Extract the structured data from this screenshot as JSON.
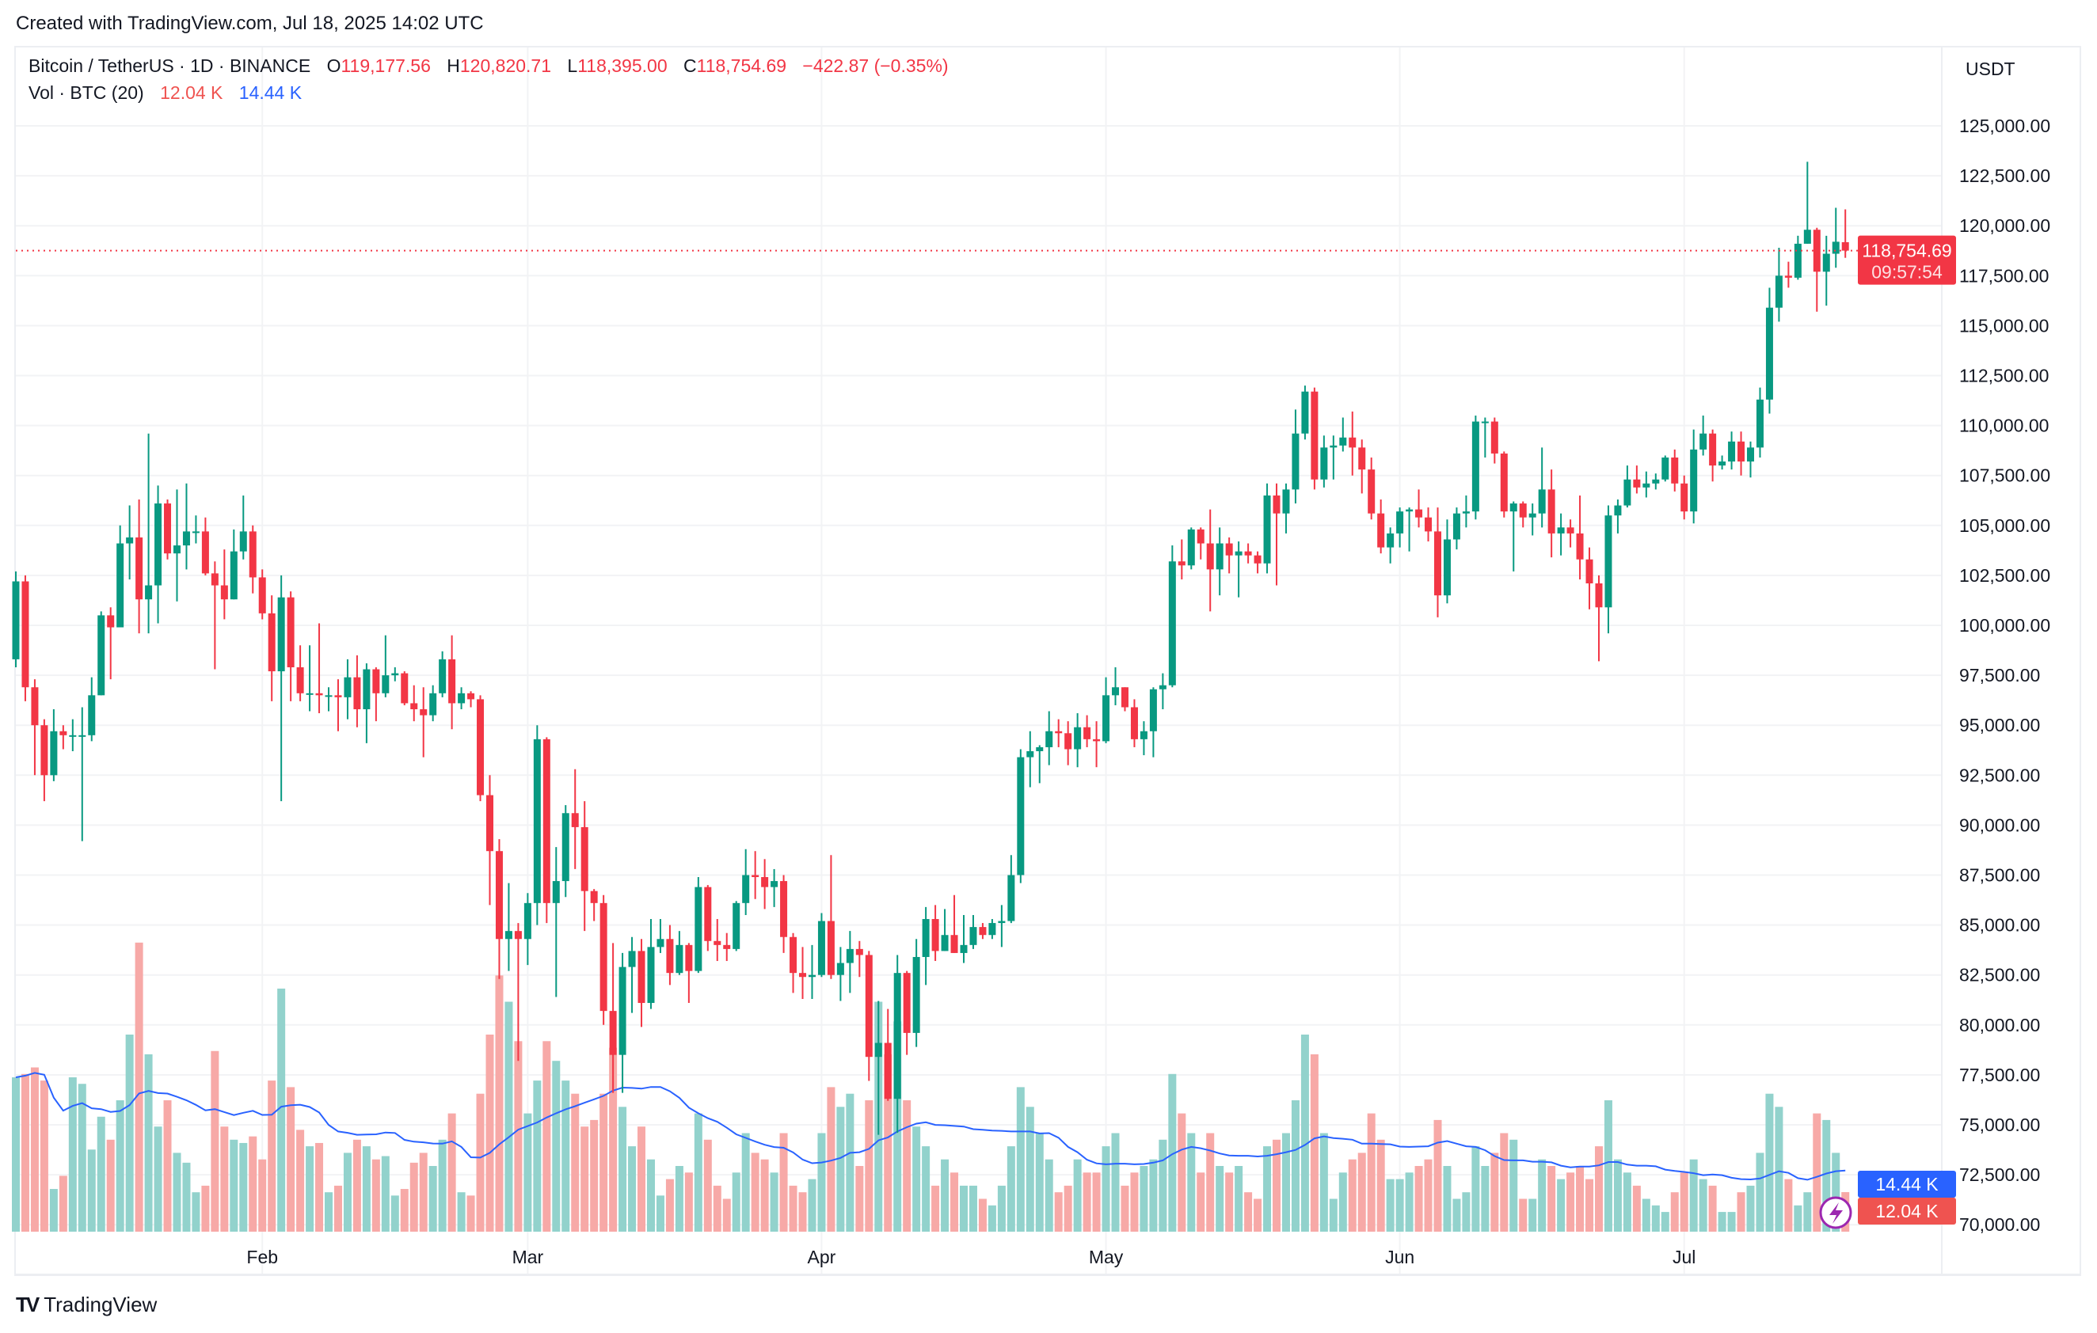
{
  "header": {
    "created": "Created with TradingView.com, Jul 18, 2025 14:02 UTC"
  },
  "legend": {
    "symbol": "Bitcoin / TetherUS · 1D · BINANCE",
    "o_label": "O",
    "o": "119,177.56",
    "h_label": "H",
    "h": "120,820.71",
    "l_label": "L",
    "l": "118,395.00",
    "c_label": "C",
    "c": "118,754.69",
    "change": "−422.87 (−0.35%)",
    "vol_label": "Vol · BTC (20)",
    "vol": "12.04 K",
    "vol_ma": "14.44 K"
  },
  "axis": {
    "currency": "USDT"
  },
  "price_label": {
    "price": "118,754.69",
    "countdown": "09:57:54"
  },
  "vol_labels": {
    "ma": "14.44 K",
    "vol": "12.04 K"
  },
  "footer": {
    "brand": "TradingView"
  },
  "colors": {
    "up": "#089981",
    "down": "#f23645",
    "vol_up": "#92d2cc",
    "vol_down": "#f7a9a7",
    "ma": "#2962ff",
    "alert": "#9c27b0"
  },
  "chart_data": {
    "type": "candlestick",
    "period": "1D",
    "first_date": "2025-01-06",
    "last_date": "2025-07-18",
    "ylim": [
      68000,
      128000
    ],
    "y_ticks": [
      70000,
      72500,
      75000,
      77500,
      80000,
      82500,
      85000,
      87500,
      90000,
      92500,
      95000,
      97500,
      100000,
      102500,
      105000,
      107500,
      110000,
      112500,
      115000,
      117500,
      120000,
      122500,
      125000
    ],
    "y_tick_labels": [
      "70,000.00",
      "72,500.00",
      "75,000.00",
      "77,500.00",
      "80,000.00",
      "82,500.00",
      "85,000.00",
      "87,500.00",
      "90,000.00",
      "92,500.00",
      "95,000.00",
      "97,500.00",
      "100,000.00",
      "102,500.00",
      "105,000.00",
      "107,500.00",
      "110,000.00",
      "112,500.00",
      "115,000.00",
      "117,500.00",
      "120,000.00",
      "122,500.00",
      "125,000.00"
    ],
    "x_ticks": [
      {
        "label": "Feb",
        "date": "2025-02-01"
      },
      {
        "label": "Mar",
        "date": "2025-03-01"
      },
      {
        "label": "Apr",
        "date": "2025-04-01"
      },
      {
        "label": "May",
        "date": "2025-05-01"
      },
      {
        "label": "Jun",
        "date": "2025-06-01"
      },
      {
        "label": "Jul",
        "date": "2025-07-01"
      }
    ],
    "last_price": 118754.69,
    "ohlc": [
      [
        98300,
        102700,
        97900,
        102200
      ],
      [
        102200,
        102500,
        96200,
        96900
      ],
      [
        96900,
        97300,
        92500,
        95000
      ],
      [
        95000,
        95300,
        91200,
        92500
      ],
      [
        92500,
        95800,
        92200,
        94700
      ],
      [
        94700,
        95000,
        93800,
        94500
      ],
      [
        94500,
        95300,
        93700,
        94500
      ],
      [
        94500,
        95900,
        89200,
        94500
      ],
      [
        94500,
        97400,
        94200,
        96500
      ],
      [
        96500,
        100700,
        96500,
        100500
      ],
      [
        100500,
        100900,
        97300,
        99900
      ],
      [
        99900,
        105000,
        99900,
        104100
      ],
      [
        104100,
        106000,
        102300,
        104400
      ],
      [
        104400,
        106300,
        99600,
        101300
      ],
      [
        101300,
        109600,
        99600,
        102000
      ],
      [
        102000,
        107000,
        100100,
        106100
      ],
      [
        106100,
        106300,
        103300,
        103600
      ],
      [
        103600,
        106800,
        101200,
        104000
      ],
      [
        104000,
        107100,
        102800,
        104700
      ],
      [
        104700,
        105500,
        104100,
        104700
      ],
      [
        104700,
        105400,
        102500,
        102600
      ],
      [
        102600,
        103200,
        97800,
        102000
      ],
      [
        102000,
        103800,
        100300,
        101300
      ],
      [
        101300,
        104800,
        101300,
        103700
      ],
      [
        103700,
        106500,
        103300,
        104700
      ],
      [
        104700,
        105000,
        101600,
        102400
      ],
      [
        102400,
        102800,
        100300,
        100600
      ],
      [
        100600,
        101500,
        96200,
        97700
      ],
      [
        97700,
        102500,
        91200,
        101400
      ],
      [
        101400,
        101700,
        96200,
        97900
      ],
      [
        97900,
        99000,
        96200,
        96600
      ],
      [
        96600,
        99000,
        95700,
        96600
      ],
      [
        96600,
        100100,
        95600,
        96500
      ],
      [
        96500,
        96900,
        95700,
        96500
      ],
      [
        96500,
        97300,
        94700,
        96400
      ],
      [
        96400,
        98300,
        95300,
        97400
      ],
      [
        97400,
        98500,
        94900,
        95800
      ],
      [
        95800,
        98100,
        94100,
        97800
      ],
      [
        97800,
        97900,
        95200,
        96600
      ],
      [
        96600,
        99500,
        96400,
        97500
      ],
      [
        97500,
        97900,
        97200,
        97600
      ],
      [
        97600,
        97700,
        96000,
        96100
      ],
      [
        96100,
        97000,
        95200,
        95800
      ],
      [
        95800,
        96900,
        93400,
        95500
      ],
      [
        95500,
        97000,
        95200,
        96600
      ],
      [
        96600,
        98700,
        96400,
        98300
      ],
      [
        98300,
        99500,
        94800,
        96100
      ],
      [
        96100,
        96900,
        95800,
        96600
      ],
      [
        96600,
        96700,
        95900,
        96300
      ],
      [
        96300,
        96500,
        91200,
        91500
      ],
      [
        91500,
        92500,
        86000,
        88700
      ],
      [
        88700,
        89300,
        82300,
        84300
      ],
      [
        84300,
        87100,
        82700,
        84700
      ],
      [
        84700,
        85100,
        78200,
        84300
      ],
      [
        84300,
        86600,
        83000,
        86100
      ],
      [
        86100,
        95000,
        85000,
        94300
      ],
      [
        94300,
        94400,
        85100,
        86100
      ],
      [
        86100,
        88900,
        81400,
        87200
      ],
      [
        87200,
        91000,
        86400,
        90600
      ],
      [
        90600,
        92800,
        87800,
        89900
      ],
      [
        89900,
        91200,
        84700,
        86700
      ],
      [
        86700,
        86800,
        85200,
        86100
      ],
      [
        86100,
        86500,
        80000,
        80700
      ],
      [
        80700,
        84100,
        76600,
        78500
      ],
      [
        78500,
        83600,
        76600,
        82900
      ],
      [
        82900,
        84400,
        80600,
        83700
      ],
      [
        83700,
        84300,
        79900,
        81100
      ],
      [
        81100,
        85300,
        80800,
        83900
      ],
      [
        83900,
        85300,
        83600,
        84300
      ],
      [
        84300,
        85000,
        82000,
        82600
      ],
      [
        82600,
        84700,
        82500,
        84000
      ],
      [
        84000,
        84100,
        81100,
        82700
      ],
      [
        82700,
        87400,
        82600,
        86900
      ],
      [
        86900,
        87000,
        83700,
        84200
      ],
      [
        84200,
        85300,
        83200,
        84000
      ],
      [
        84000,
        84600,
        83200,
        83800
      ],
      [
        83800,
        86200,
        83700,
        86100
      ],
      [
        86100,
        88800,
        85500,
        87500
      ],
      [
        87500,
        88700,
        86300,
        87400
      ],
      [
        87400,
        88300,
        85800,
        86900
      ],
      [
        86900,
        87800,
        85900,
        87200
      ],
      [
        87200,
        87500,
        83600,
        84400
      ],
      [
        84400,
        84600,
        81600,
        82600
      ],
      [
        82600,
        83900,
        81300,
        82400
      ],
      [
        82400,
        84000,
        81300,
        82500
      ],
      [
        82500,
        85600,
        82400,
        85200
      ],
      [
        85200,
        88500,
        82300,
        82500
      ],
      [
        82500,
        83900,
        81200,
        83100
      ],
      [
        83100,
        84700,
        81600,
        83800
      ],
      [
        83800,
        84200,
        82400,
        83500
      ],
      [
        83500,
        83700,
        77200,
        78400
      ],
      [
        78400,
        81200,
        74500,
        79100
      ],
      [
        79100,
        80800,
        76200,
        76300
      ],
      [
        76300,
        83500,
        74600,
        82600
      ],
      [
        82600,
        82700,
        78500,
        79600
      ],
      [
        79600,
        84300,
        78900,
        83400
      ],
      [
        83400,
        85900,
        82000,
        85300
      ],
      [
        85300,
        86000,
        83200,
        83700
      ],
      [
        83700,
        85800,
        83700,
        84500
      ],
      [
        84500,
        86500,
        83600,
        83600
      ],
      [
        83600,
        85500,
        83100,
        84000
      ],
      [
        84000,
        85500,
        83800,
        84900
      ],
      [
        84900,
        85100,
        84300,
        84500
      ],
      [
        84500,
        85300,
        84300,
        85100
      ],
      [
        85100,
        86000,
        83900,
        85200
      ],
      [
        85200,
        88500,
        85100,
        87500
      ],
      [
        87500,
        93800,
        87100,
        93400
      ],
      [
        93400,
        94700,
        91900,
        93700
      ],
      [
        93700,
        94000,
        92100,
        93900
      ],
      [
        93900,
        95700,
        93000,
        94700
      ],
      [
        94700,
        95300,
        93900,
        94600
      ],
      [
        94600,
        95200,
        93000,
        93800
      ],
      [
        93800,
        95600,
        92900,
        94900
      ],
      [
        94900,
        95500,
        93900,
        94300
      ],
      [
        94300,
        95200,
        92900,
        94200
      ],
      [
        94200,
        97400,
        94100,
        96500
      ],
      [
        96500,
        97900,
        96000,
        96900
      ],
      [
        96900,
        96900,
        95700,
        95900
      ],
      [
        95900,
        96300,
        93900,
        94300
      ],
      [
        94300,
        95200,
        93500,
        94700
      ],
      [
        94700,
        96900,
        93400,
        96800
      ],
      [
        96800,
        97600,
        95800,
        97000
      ],
      [
        97000,
        104000,
        96900,
        103200
      ],
      [
        103200,
        104300,
        102300,
        103000
      ],
      [
        103000,
        104900,
        102800,
        104800
      ],
      [
        104800,
        104900,
        103300,
        104100
      ],
      [
        104100,
        105800,
        100700,
        102800
      ],
      [
        102800,
        104900,
        101500,
        104100
      ],
      [
        104100,
        104400,
        102600,
        103500
      ],
      [
        103500,
        104200,
        101400,
        103700
      ],
      [
        103700,
        104100,
        103100,
        103500
      ],
      [
        103500,
        103700,
        102600,
        103100
      ],
      [
        103100,
        107100,
        102600,
        106500
      ],
      [
        106500,
        107100,
        102000,
        105600
      ],
      [
        105600,
        107100,
        104600,
        106800
      ],
      [
        106800,
        110800,
        106100,
        109600
      ],
      [
        109600,
        112000,
        109300,
        111700
      ],
      [
        111700,
        111900,
        106800,
        107300
      ],
      [
        107300,
        109500,
        106900,
        108900
      ],
      [
        108900,
        109500,
        107300,
        109000
      ],
      [
        109000,
        110400,
        108700,
        109400
      ],
      [
        109400,
        110700,
        107500,
        108900
      ],
      [
        108900,
        109300,
        106600,
        107800
      ],
      [
        107800,
        108400,
        105300,
        105600
      ],
      [
        105600,
        106300,
        103600,
        103900
      ],
      [
        103900,
        104900,
        103100,
        104600
      ],
      [
        104600,
        105900,
        103900,
        105700
      ],
      [
        105700,
        105900,
        103700,
        105800
      ],
      [
        105800,
        106800,
        104900,
        105400
      ],
      [
        105400,
        105900,
        104200,
        104700
      ],
      [
        104700,
        105900,
        100400,
        101500
      ],
      [
        101500,
        105300,
        101100,
        104300
      ],
      [
        104300,
        105900,
        103800,
        105600
      ],
      [
        105600,
        106500,
        104900,
        105700
      ],
      [
        105700,
        110500,
        105300,
        110200
      ],
      [
        110200,
        110400,
        108400,
        110200
      ],
      [
        110200,
        110400,
        108100,
        108600
      ],
      [
        108600,
        108700,
        105400,
        105700
      ],
      [
        105700,
        106200,
        102700,
        106100
      ],
      [
        106100,
        106200,
        104900,
        105400
      ],
      [
        105400,
        106100,
        104500,
        105600
      ],
      [
        105600,
        108900,
        104900,
        106800
      ],
      [
        106800,
        107800,
        103400,
        104600
      ],
      [
        104600,
        105600,
        103500,
        104900
      ],
      [
        104900,
        105300,
        103900,
        104600
      ],
      [
        104600,
        106500,
        102300,
        103300
      ],
      [
        103300,
        103900,
        100800,
        102100
      ],
      [
        102100,
        102500,
        98200,
        100900
      ],
      [
        100900,
        106000,
        99600,
        105500
      ],
      [
        105500,
        106300,
        104600,
        106000
      ],
      [
        106000,
        108000,
        105900,
        107300
      ],
      [
        107300,
        108000,
        106600,
        106900
      ],
      [
        106900,
        107700,
        106400,
        107100
      ],
      [
        107100,
        107600,
        106800,
        107300
      ],
      [
        107300,
        108500,
        107200,
        108400
      ],
      [
        108400,
        108800,
        106700,
        107100
      ],
      [
        107100,
        107500,
        105300,
        105700
      ],
      [
        105700,
        109800,
        105100,
        108800
      ],
      [
        108800,
        110500,
        108500,
        109600
      ],
      [
        109600,
        109800,
        107200,
        108000
      ],
      [
        108000,
        108500,
        107800,
        108200
      ],
      [
        108200,
        109700,
        107800,
        109200
      ],
      [
        109200,
        109700,
        107500,
        108200
      ],
      [
        108200,
        109200,
        107400,
        108900
      ],
      [
        108900,
        111900,
        108400,
        111300
      ],
      [
        111300,
        116900,
        110600,
        115900
      ],
      [
        115900,
        118900,
        115200,
        117500
      ],
      [
        117500,
        118200,
        116900,
        117400
      ],
      [
        117400,
        119500,
        117300,
        119100
      ],
      [
        119100,
        123200,
        119100,
        119800
      ],
      [
        119800,
        119900,
        115700,
        117700
      ],
      [
        117700,
        119500,
        116000,
        118600
      ],
      [
        118600,
        120900,
        117900,
        119200
      ],
      [
        119177.56,
        120820.71,
        118395,
        118754.69
      ]
    ],
    "volume_unit": "K",
    "volume": [
      47,
      48,
      50,
      46,
      13,
      17,
      47,
      45,
      25,
      35,
      28,
      40,
      60,
      88,
      54,
      32,
      40,
      24,
      21,
      12,
      14,
      55,
      32,
      28,
      27,
      29,
      22,
      46,
      74,
      44,
      31,
      26,
      27,
      12,
      14,
      24,
      28,
      26,
      22,
      23,
      11,
      13,
      21,
      24,
      20,
      28,
      36,
      12,
      11,
      42,
      60,
      78,
      70,
      58,
      36,
      46,
      58,
      52,
      46,
      42,
      32,
      34,
      42,
      56,
      38,
      26,
      32,
      22,
      11,
      16,
      20,
      18,
      36,
      28,
      14,
      10,
      18,
      30,
      24,
      22,
      18,
      30,
      14,
      12,
      16,
      30,
      44,
      38,
      42,
      20,
      40,
      70,
      54,
      64,
      40,
      32,
      26,
      14,
      22,
      18,
      14,
      14,
      10,
      8,
      14,
      26,
      44,
      38,
      30,
      22,
      12,
      14,
      22,
      18,
      18,
      26,
      30,
      14,
      18,
      20,
      22,
      28,
      48,
      36,
      30,
      18,
      30,
      20,
      18,
      20,
      12,
      10,
      26,
      28,
      30,
      40,
      60,
      54,
      30,
      10,
      18,
      22,
      24,
      36,
      28,
      16,
      16,
      18,
      20,
      22,
      34,
      20,
      10,
      12,
      26,
      20,
      24,
      30,
      28,
      10,
      10,
      22,
      20,
      16,
      18,
      20,
      16,
      26,
      40,
      22,
      18,
      14,
      10,
      8,
      6,
      12,
      18,
      22,
      16,
      14,
      6,
      6,
      12,
      14,
      24,
      42,
      38,
      16,
      8,
      12,
      36,
      34,
      24,
      12.04
    ],
    "volume_ma_period": 20
  }
}
